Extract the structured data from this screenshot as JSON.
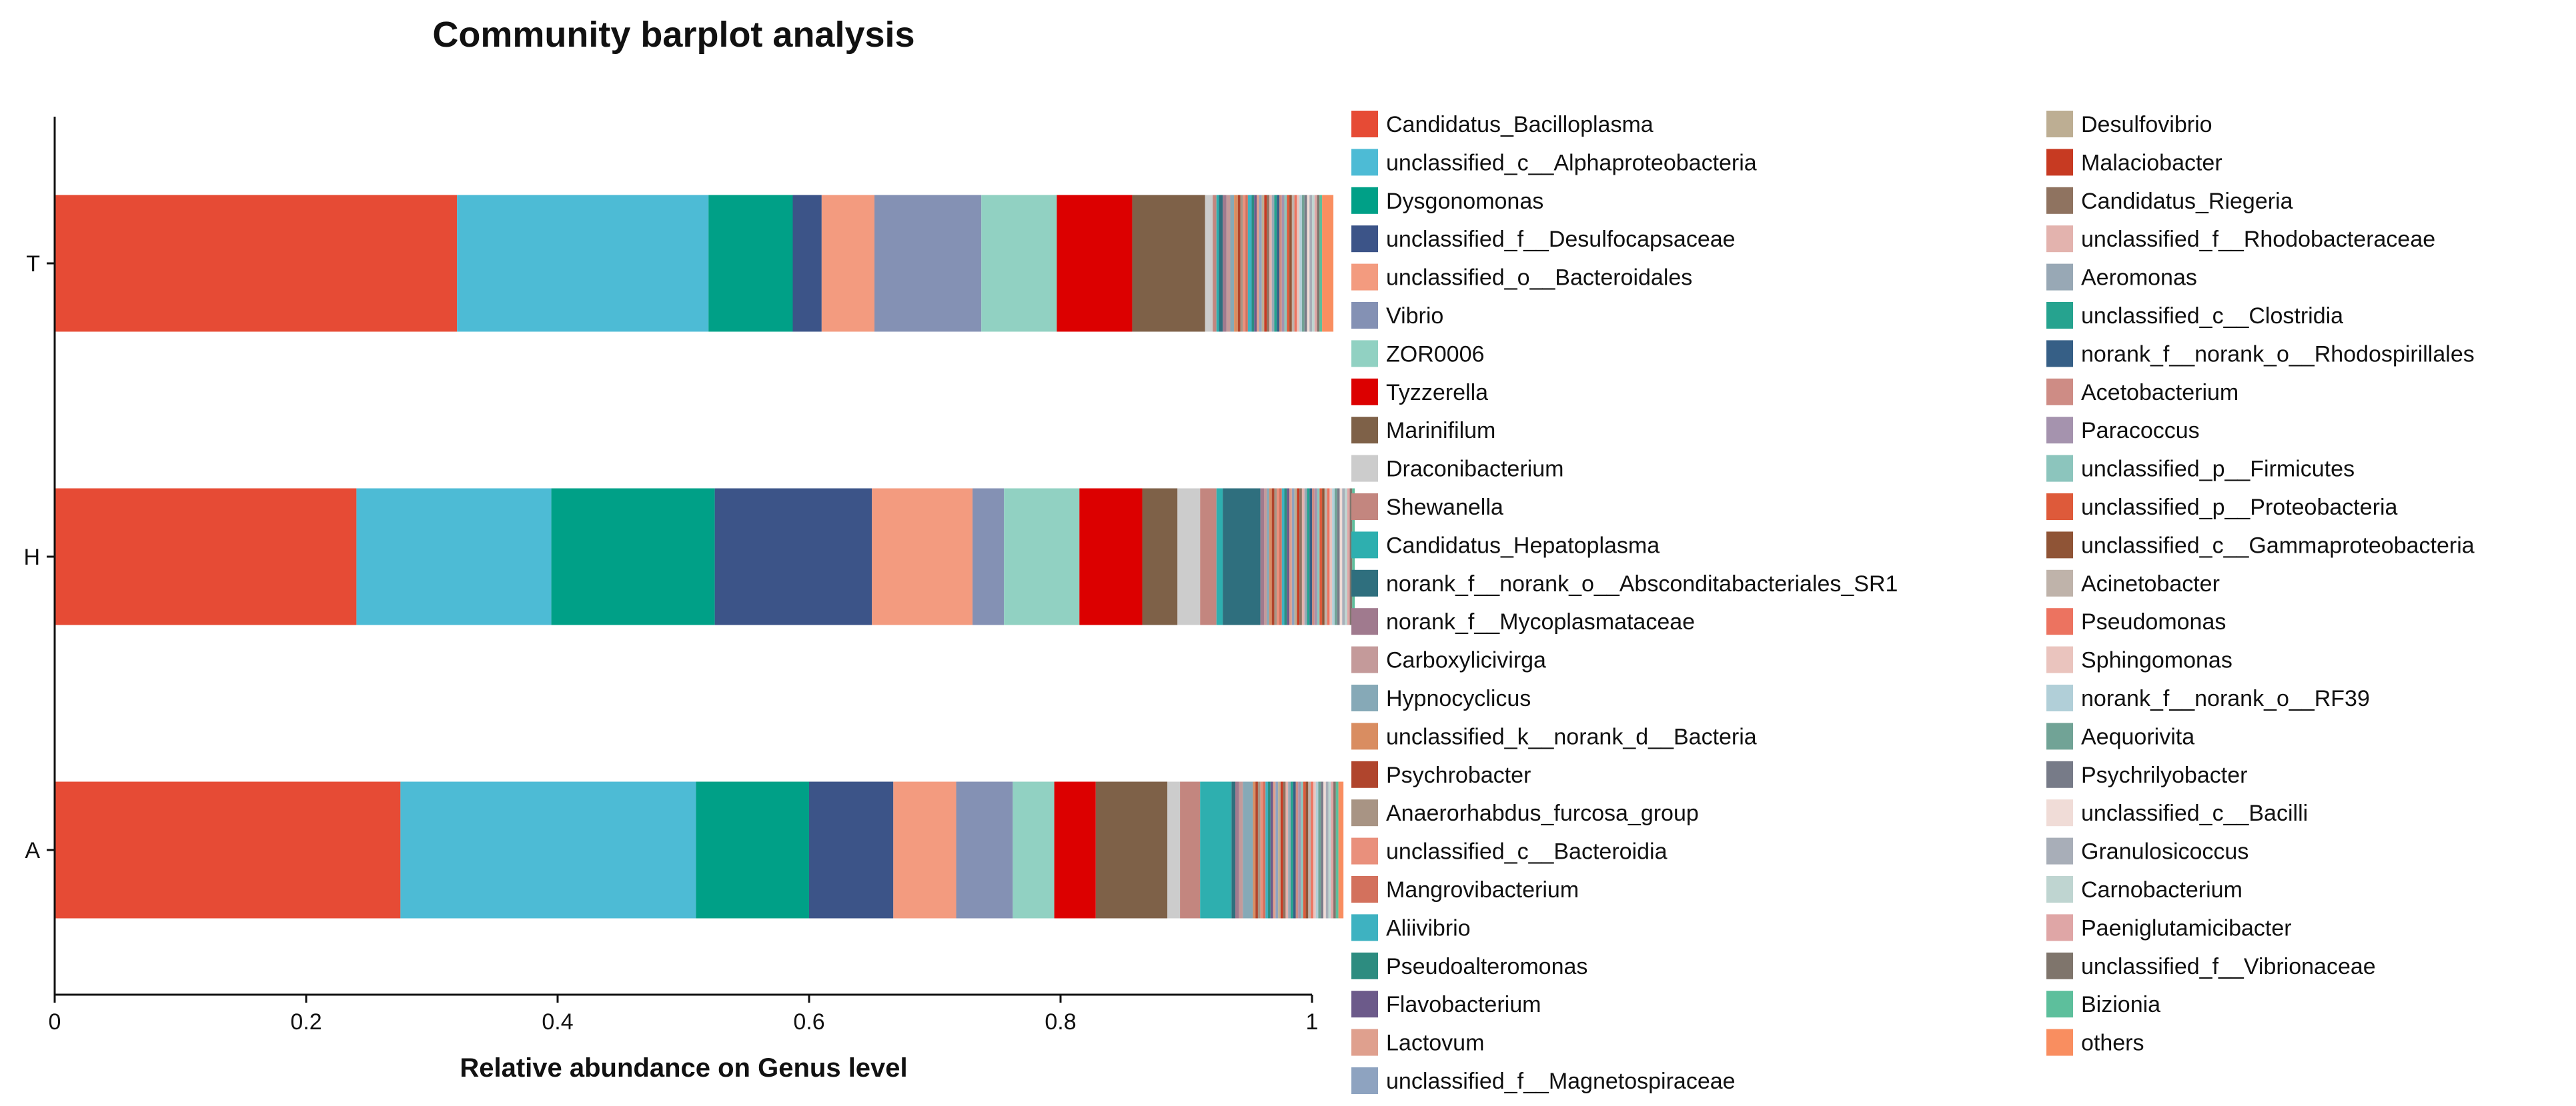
{
  "chart_data": {
    "type": "bar",
    "orientation": "horizontal",
    "stacked": true,
    "title": "Community barplot analysis",
    "xlabel": "Relative abundance on Genus level",
    "ylabel": "",
    "xlim": [
      0,
      1
    ],
    "xticks": [
      "0",
      "0.2",
      "0.4",
      "0.6",
      "0.8",
      "1"
    ],
    "categories": [
      "T",
      "H",
      "A"
    ],
    "legend_position": "right",
    "grid": false,
    "series": [
      {
        "name": "Candidatus_Bacilloplasma",
        "color": "#E64B35",
        "values": [
          0.32,
          0.24,
          0.275
        ]
      },
      {
        "name": "unclassified_c__Alphaproteobacteria",
        "color": "#4DBBD5",
        "values": [
          0.2,
          0.155,
          0.235
        ]
      },
      {
        "name": "Dysgonomonas",
        "color": "#00A087",
        "values": [
          0.067,
          0.13,
          0.09
        ]
      },
      {
        "name": "unclassified_f__Desulfocapsaceae",
        "color": "#3C5488",
        "values": [
          0.023,
          0.125,
          0.067
        ]
      },
      {
        "name": "unclassified_o__Bacteroidales",
        "color": "#F39B7F",
        "values": [
          0.042,
          0.08,
          0.05
        ]
      },
      {
        "name": "Vibrio",
        "color": "#8491B4",
        "values": [
          0.085,
          0.025,
          0.045
        ]
      },
      {
        "name": "ZOR0006",
        "color": "#91D1C2",
        "values": [
          0.06,
          0.06,
          0.033
        ]
      },
      {
        "name": "Tyzzerella",
        "color": "#DC0000",
        "values": [
          0.06,
          0.05,
          0.033
        ]
      },
      {
        "name": "Marinifilum",
        "color": "#7E6148",
        "values": [
          0.058,
          0.028,
          0.057
        ]
      },
      {
        "name": "Draconibacterium",
        "color": "#CCCCCC",
        "values": [
          0.006,
          0.018,
          0.01
        ]
      },
      {
        "name": "Shewanella",
        "color": "#C3867F",
        "values": [
          0.003,
          0.013,
          0.016
        ]
      },
      {
        "name": "Candidatus_Hepatoplasma",
        "color": "#2EAFAF",
        "values": [
          0.002,
          0.005,
          0.025
        ]
      },
      {
        "name": "norank_f__norank_o__Absconditabacteriales_SR1",
        "color": "#2F6F7E",
        "values": [
          0.003,
          0.03,
          0.003
        ]
      },
      {
        "name": "norank_f__Mycoplasmataceae",
        "color": "#A07A8E",
        "values": [
          0.003,
          0.003,
          0.003
        ]
      },
      {
        "name": "Carboxylicivirga",
        "color": "#C49A9A",
        "values": [
          0.003,
          0.002,
          0.003
        ]
      },
      {
        "name": "Hypnocyclicus",
        "color": "#86A9B7",
        "values": [
          0.003,
          0.002,
          0.008
        ]
      },
      {
        "name": "unclassified_k__norank_d__Bacteria",
        "color": "#D98D61",
        "values": [
          0.003,
          0.002,
          0.002
        ]
      },
      {
        "name": "Psychrobacter",
        "color": "#B0452D",
        "values": [
          0.002,
          0.002,
          0.002
        ]
      },
      {
        "name": "Anaerorhabdus_furcosa_group",
        "color": "#A89484",
        "values": [
          0.002,
          0.002,
          0.002
        ]
      },
      {
        "name": "unclassified_c__Bacteroidia",
        "color": "#E9907C",
        "values": [
          0.002,
          0.002,
          0.002
        ]
      },
      {
        "name": "Mangrovibacterium",
        "color": "#D3715D",
        "values": [
          0.002,
          0.002,
          0.002
        ]
      },
      {
        "name": "Aliivibrio",
        "color": "#3EB2C1",
        "values": [
          0.003,
          0.002,
          0.002
        ]
      },
      {
        "name": "Pseudoalteromonas",
        "color": "#2D8C80",
        "values": [
          0.002,
          0.002,
          0.002
        ]
      },
      {
        "name": "Flavobacterium",
        "color": "#6C5A8A",
        "values": [
          0.002,
          0.002,
          0.002
        ]
      },
      {
        "name": "Lactovum",
        "color": "#DFA08E",
        "values": [
          0.002,
          0.002,
          0.002
        ]
      },
      {
        "name": "unclassified_f__Magnetospiraceae",
        "color": "#8EA3C0",
        "values": [
          0.002,
          0.002,
          0.002
        ]
      },
      {
        "name": "Desulfovibrio",
        "color": "#BDAE93",
        "values": [
          0.002,
          0.002,
          0.002
        ]
      },
      {
        "name": "Malaciobacter",
        "color": "#C73A22",
        "values": [
          0.002,
          0.002,
          0.002
        ]
      },
      {
        "name": "Candidatus_Riegeria",
        "color": "#8F7360",
        "values": [
          0.002,
          0.002,
          0.002
        ]
      },
      {
        "name": "unclassified_f__Rhodobacteraceae",
        "color": "#E3B3AE",
        "values": [
          0.002,
          0.002,
          0.002
        ]
      },
      {
        "name": "Aeromonas",
        "color": "#98A8B5",
        "values": [
          0.002,
          0.002,
          0.002
        ]
      },
      {
        "name": "unclassified_c__Clostridia",
        "color": "#26A38F",
        "values": [
          0.002,
          0.002,
          0.002
        ]
      },
      {
        "name": "norank_f__norank_o__Rhodospirillales",
        "color": "#365F86",
        "values": [
          0.002,
          0.002,
          0.002
        ]
      },
      {
        "name": "Acetobacterium",
        "color": "#CE8C85",
        "values": [
          0.002,
          0.002,
          0.002
        ]
      },
      {
        "name": "Paracoccus",
        "color": "#A593AE",
        "values": [
          0.002,
          0.002,
          0.002
        ]
      },
      {
        "name": "unclassified_p__Firmicutes",
        "color": "#8CC5BD",
        "values": [
          0.002,
          0.002,
          0.002
        ]
      },
      {
        "name": "unclassified_p__Proteobacteria",
        "color": "#DE5A3A",
        "values": [
          0.002,
          0.002,
          0.002
        ]
      },
      {
        "name": "unclassified_c__Gammaproteobacteria",
        "color": "#8F5436",
        "values": [
          0.002,
          0.002,
          0.002
        ]
      },
      {
        "name": "Acinetobacter",
        "color": "#BFB3AA",
        "values": [
          0.002,
          0.002,
          0.002
        ]
      },
      {
        "name": "Pseudomonas",
        "color": "#EC7360",
        "values": [
          0.002,
          0.002,
          0.002
        ]
      },
      {
        "name": "Sphingomonas",
        "color": "#EAC4BE",
        "values": [
          0.002,
          0.002,
          0.002
        ]
      },
      {
        "name": "norank_f__norank_o__RF39",
        "color": "#B1CFD8",
        "values": [
          0.002,
          0.002,
          0.002
        ]
      },
      {
        "name": "Aequorivita",
        "color": "#71A396",
        "values": [
          0.002,
          0.002,
          0.002
        ]
      },
      {
        "name": "Psychrilyobacter",
        "color": "#777B88",
        "values": [
          0.002,
          0.002,
          0.002
        ]
      },
      {
        "name": "unclassified_c__Bacilli",
        "color": "#F0DCD7",
        "values": [
          0.002,
          0.002,
          0.002
        ]
      },
      {
        "name": "Granulosicoccus",
        "color": "#A8AEB8",
        "values": [
          0.002,
          0.002,
          0.002
        ]
      },
      {
        "name": "Carnobacterium",
        "color": "#BFD5D1",
        "values": [
          0.002,
          0.002,
          0.002
        ]
      },
      {
        "name": "Paeniglutamicibacter",
        "color": "#DFA6A6",
        "values": [
          0.002,
          0.002,
          0.002
        ]
      },
      {
        "name": "unclassified_f__Vibrionaceae",
        "color": "#7F756C",
        "values": [
          0.002,
          0.002,
          0.002
        ]
      },
      {
        "name": "Bizionia",
        "color": "#5DBF9C",
        "values": [
          0.002,
          0.002,
          0.002
        ]
      },
      {
        "name": "others",
        "color": "#F98E60",
        "values": [
          0.009,
          0.0,
          0.004
        ]
      }
    ]
  }
}
